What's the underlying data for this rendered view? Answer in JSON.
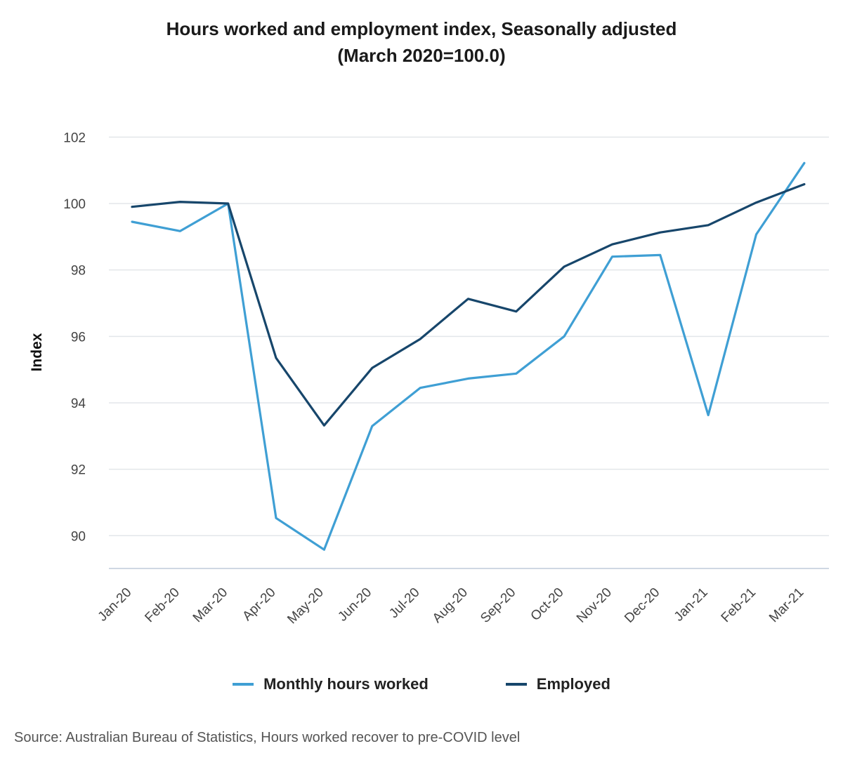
{
  "chart_data": {
    "type": "line",
    "title": "Hours worked and employment index, Seasonally adjusted",
    "subtitle": "(March 2020=100.0)",
    "xlabel": "",
    "ylabel": "Index",
    "ylim": [
      89,
      102
    ],
    "yticks": [
      90,
      92,
      94,
      96,
      98,
      100,
      102
    ],
    "grid": true,
    "legend_position": "bottom",
    "categories": [
      "Jan-20",
      "Feb-20",
      "Mar-20",
      "Apr-20",
      "May-20",
      "Jun-20",
      "Jul-20",
      "Aug-20",
      "Sep-20",
      "Oct-20",
      "Nov-20",
      "Dec-20",
      "Jan-21",
      "Feb-21",
      "Mar-21"
    ],
    "series": [
      {
        "name": "Monthly hours worked",
        "color": "#3f9fd4",
        "values": [
          99.45,
          99.17,
          100.0,
          90.53,
          89.58,
          93.3,
          94.45,
          94.73,
          94.88,
          96.0,
          98.4,
          98.45,
          93.63,
          99.07,
          101.22
        ]
      },
      {
        "name": "Employed",
        "color": "#17466b",
        "values": [
          99.9,
          100.05,
          100.0,
          95.35,
          93.32,
          95.05,
          95.92,
          97.13,
          96.75,
          98.1,
          98.77,
          99.13,
          99.35,
          100.03,
          100.58
        ]
      }
    ],
    "source": "Source: Australian Bureau of Statistics, Hours worked recover to pre-COVID level"
  }
}
